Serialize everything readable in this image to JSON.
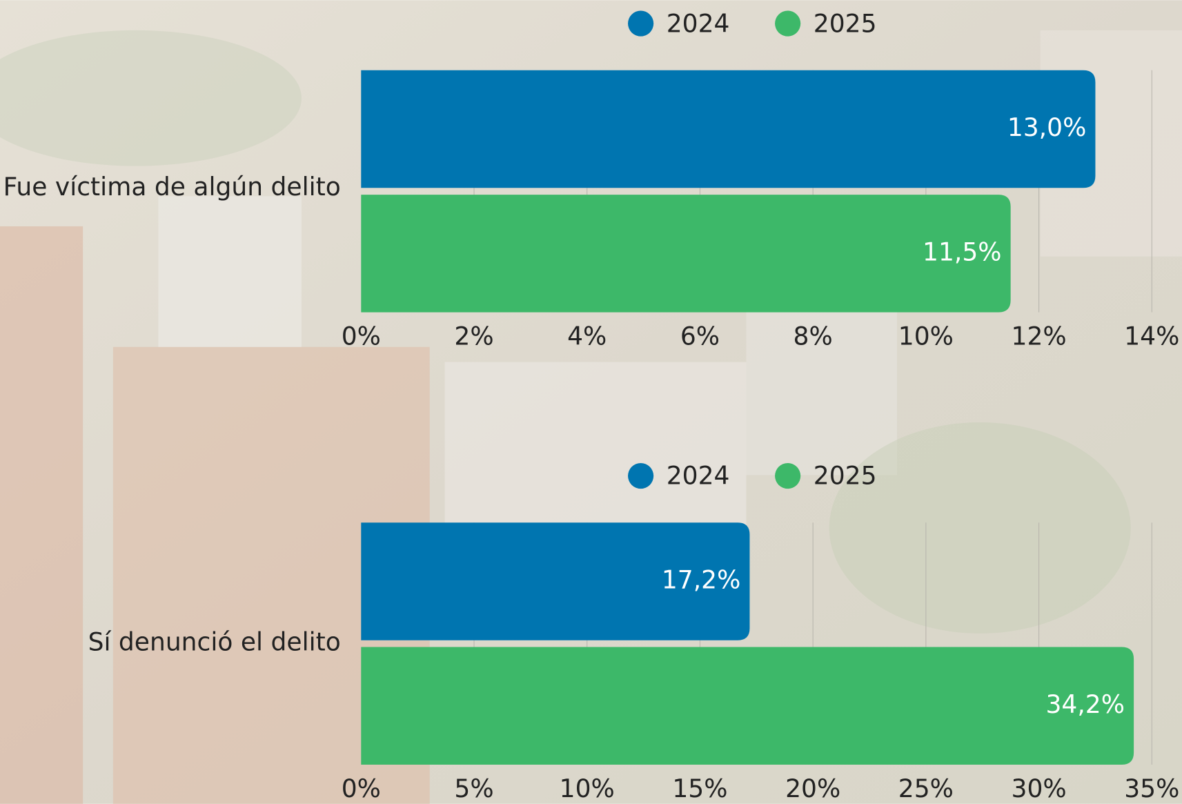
{
  "chart_data": [
    {
      "type": "bar",
      "orientation": "horizontal",
      "categories": [
        "Fue víctima de algún delito"
      ],
      "series": [
        {
          "name": "2024",
          "color": "#0075b0",
          "values": [
            13.0
          ],
          "value_labels": [
            "13,0%"
          ]
        },
        {
          "name": "2025",
          "color": "#3db869",
          "values": [
            11.5
          ],
          "value_labels": [
            "11,5%"
          ]
        }
      ],
      "xlim": [
        0,
        14
      ],
      "xticks": [
        {
          "value": 0,
          "label": "0%"
        },
        {
          "value": 2,
          "label": "2%"
        },
        {
          "value": 4,
          "label": "4%"
        },
        {
          "value": 6,
          "label": "6%"
        },
        {
          "value": 8,
          "label": "8%"
        },
        {
          "value": 10,
          "label": "10%"
        },
        {
          "value": 12,
          "label": "12%"
        },
        {
          "value": 14,
          "label": "14%"
        }
      ],
      "grid": true,
      "legend": "top"
    },
    {
      "type": "bar",
      "orientation": "horizontal",
      "categories": [
        "Sí denunció el delito"
      ],
      "series": [
        {
          "name": "2024",
          "color": "#0075b0",
          "values": [
            17.2
          ],
          "value_labels": [
            "17,2%"
          ]
        },
        {
          "name": "2025",
          "color": "#3db869",
          "values": [
            34.2
          ],
          "value_labels": [
            "34,2%"
          ]
        }
      ],
      "xlim": [
        0,
        35
      ],
      "xticks": [
        {
          "value": 0,
          "label": "0%"
        },
        {
          "value": 5,
          "label": "5%"
        },
        {
          "value": 10,
          "label": "10%"
        },
        {
          "value": 15,
          "label": "15%"
        },
        {
          "value": 20,
          "label": "20%"
        },
        {
          "value": 25,
          "label": "25%"
        },
        {
          "value": 30,
          "label": "30%"
        },
        {
          "value": 35,
          "label": "35%"
        }
      ],
      "grid": true,
      "legend": "top"
    }
  ]
}
